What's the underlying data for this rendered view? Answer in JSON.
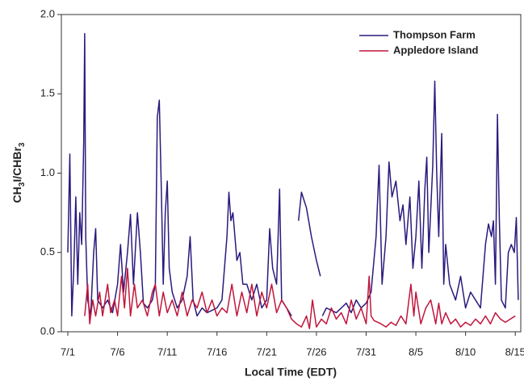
{
  "chart_data": {
    "type": "line",
    "xlabel": "Local Time (EDT)",
    "ylabel": "CH3I/CHBr3",
    "xlim": [
      -0.65,
      45.55
    ],
    "ylim": [
      0,
      2
    ],
    "xticks": [
      {
        "value": 0,
        "label": "7/1"
      },
      {
        "value": 5,
        "label": "7/6"
      },
      {
        "value": 10,
        "label": "7/11"
      },
      {
        "value": 15,
        "label": "7/16"
      },
      {
        "value": 20,
        "label": "7/21"
      },
      {
        "value": 25,
        "label": "7/26"
      },
      {
        "value": 30,
        "label": "7/31"
      },
      {
        "value": 35,
        "label": "8/5"
      },
      {
        "value": 40,
        "label": "8/10"
      },
      {
        "value": 45,
        "label": "8/15"
      }
    ],
    "yticks": [
      {
        "value": 0,
        "label": "0.0"
      },
      {
        "value": 0.5,
        "label": "0.5"
      },
      {
        "value": 1,
        "label": "1.0"
      },
      {
        "value": 1.5,
        "label": "1.5"
      },
      {
        "value": 2,
        "label": "2.0"
      }
    ],
    "legend": "upper right",
    "series": [
      {
        "name": "Thompson Farm",
        "color": "#2b1a7d",
        "x": [
          0.0,
          0.2,
          0.4,
          0.6,
          0.8,
          1.0,
          1.2,
          1.4,
          1.6,
          1.7,
          1.8,
          2.0,
          2.3,
          2.6,
          2.8,
          3.0,
          3.5,
          4.0,
          4.5,
          5.0,
          5.3,
          5.6,
          6.0,
          6.3,
          6.6,
          7.0,
          7.3,
          7.6,
          8.0,
          8.5,
          8.8,
          9.0,
          9.2,
          9.4,
          9.6,
          9.8,
          10.0,
          10.2,
          10.5,
          11.0,
          11.5,
          12.0,
          12.3,
          12.6,
          13.0,
          13.5,
          14.0,
          15.0,
          15.5,
          16.0,
          16.2,
          16.4,
          16.6,
          17.0,
          17.3,
          17.6,
          18.0,
          18.5,
          19.0,
          19.5,
          20.0,
          20.3,
          20.6,
          21.0,
          21.3,
          21.5,
          22.0,
          22.5,
          22.8,
          23.2,
          23.5,
          24.0,
          24.5,
          25.0,
          25.4,
          25.5,
          25.6,
          26.0,
          27.0,
          28.0,
          28.5,
          29.0,
          29.5,
          30.0,
          30.5,
          31.0,
          31.3,
          31.6,
          32.0,
          32.3,
          32.6,
          33.0,
          33.4,
          33.7,
          34.0,
          34.4,
          34.7,
          35.0,
          35.3,
          35.6,
          35.9,
          36.1,
          36.3,
          36.7,
          36.9,
          37.1,
          37.3,
          37.6,
          37.8,
          38.0,
          38.4,
          39.0,
          39.5,
          40.0,
          40.5,
          41.0,
          41.5,
          42.0,
          42.3,
          42.6,
          42.8,
          43.0,
          43.2,
          43.4,
          43.6,
          44.0,
          44.3,
          44.6,
          44.9,
          45.1,
          45.3
        ],
        "values": [
          0.5,
          1.12,
          0.1,
          0.4,
          0.85,
          0.3,
          0.75,
          0.55,
          1.2,
          1.88,
          0.6,
          0.2,
          0.1,
          0.5,
          0.65,
          0.2,
          0.15,
          0.2,
          0.12,
          0.3,
          0.55,
          0.25,
          0.5,
          0.74,
          0.3,
          0.75,
          0.5,
          0.18,
          0.15,
          0.2,
          0.3,
          1.35,
          1.46,
          0.9,
          0.3,
          0.75,
          0.95,
          0.4,
          0.25,
          0.15,
          0.2,
          0.35,
          0.6,
          0.2,
          0.1,
          0.15,
          0.12,
          0.15,
          0.2,
          0.6,
          0.88,
          0.7,
          0.75,
          0.45,
          0.5,
          0.3,
          0.3,
          0.2,
          0.3,
          0.15,
          0.2,
          0.65,
          0.4,
          0.3,
          0.9,
          0.2,
          0.15,
          0.1,
          null,
          0.7,
          0.88,
          0.78,
          0.6,
          0.45,
          0.35,
          null,
          0.1,
          0.15,
          0.12,
          0.18,
          0.12,
          0.2,
          0.15,
          0.18,
          0.25,
          0.6,
          1.05,
          0.3,
          0.6,
          1.07,
          0.85,
          0.95,
          0.7,
          0.8,
          0.55,
          0.85,
          0.4,
          0.6,
          0.95,
          0.4,
          0.9,
          1.1,
          0.5,
          1.05,
          1.58,
          1.0,
          0.6,
          1.25,
          0.3,
          0.55,
          0.3,
          0.2,
          0.35,
          0.15,
          0.25,
          0.2,
          0.15,
          0.55,
          0.68,
          0.6,
          0.7,
          0.3,
          1.37,
          0.7,
          0.2,
          0.15,
          0.5,
          0.55,
          0.5,
          0.72,
          0.2
        ]
      },
      {
        "name": "Appledore Island",
        "color": "#c0163c",
        "x": [
          1.7,
          2.0,
          2.2,
          2.5,
          2.8,
          3.2,
          3.5,
          4.0,
          4.3,
          4.7,
          5.0,
          5.4,
          5.7,
          6.0,
          6.3,
          6.7,
          7.0,
          7.5,
          8.0,
          8.5,
          8.8,
          9.2,
          9.6,
          10.0,
          10.5,
          11.0,
          11.5,
          12.0,
          12.5,
          13.0,
          13.5,
          14.0,
          14.5,
          15.0,
          15.5,
          16.0,
          16.5,
          17.0,
          17.5,
          18.0,
          18.5,
          19.0,
          19.5,
          20.0,
          20.5,
          21.0,
          21.5,
          22.0,
          22.5,
          23.0,
          23.5,
          24.0,
          24.3,
          24.6,
          25.0,
          25.5,
          26.0,
          26.5,
          27.0,
          27.5,
          28.0,
          28.5,
          29.0,
          29.5,
          30.0,
          30.3,
          30.5,
          30.8,
          31.5,
          32.0,
          32.5,
          33.0,
          33.5,
          34.0,
          34.5,
          34.8,
          35.0,
          35.5,
          36.0,
          36.5,
          37.0,
          37.3,
          37.6,
          38.0,
          38.5,
          39.0,
          39.5,
          40.0,
          40.5,
          41.0,
          41.5,
          42.0,
          42.5,
          43.0,
          43.5,
          44.0,
          44.5,
          45.0
        ],
        "values": [
          0.1,
          0.3,
          0.05,
          0.2,
          0.1,
          0.25,
          0.1,
          0.3,
          0.12,
          0.2,
          0.1,
          0.35,
          0.15,
          0.4,
          0.1,
          0.3,
          0.15,
          0.2,
          0.1,
          0.25,
          0.3,
          0.1,
          0.25,
          0.12,
          0.2,
          0.1,
          0.25,
          0.1,
          0.2,
          0.15,
          0.25,
          0.12,
          0.2,
          0.1,
          0.15,
          0.12,
          0.3,
          0.1,
          0.25,
          0.12,
          0.3,
          0.1,
          0.25,
          0.15,
          0.3,
          0.12,
          0.2,
          0.15,
          0.08,
          0.05,
          0.03,
          0.1,
          0.02,
          0.2,
          0.03,
          0.08,
          0.05,
          0.15,
          0.08,
          0.12,
          0.05,
          0.2,
          0.08,
          0.15,
          0.05,
          0.35,
          0.1,
          0.07,
          0.05,
          0.03,
          0.06,
          0.04,
          0.1,
          0.05,
          0.3,
          0.1,
          0.25,
          0.05,
          0.15,
          0.2,
          0.05,
          0.18,
          0.05,
          0.12,
          0.05,
          0.08,
          0.03,
          0.06,
          0.04,
          0.08,
          0.05,
          0.1,
          0.05,
          0.12,
          0.08,
          0.06,
          0.08,
          0.1
        ]
      }
    ]
  }
}
